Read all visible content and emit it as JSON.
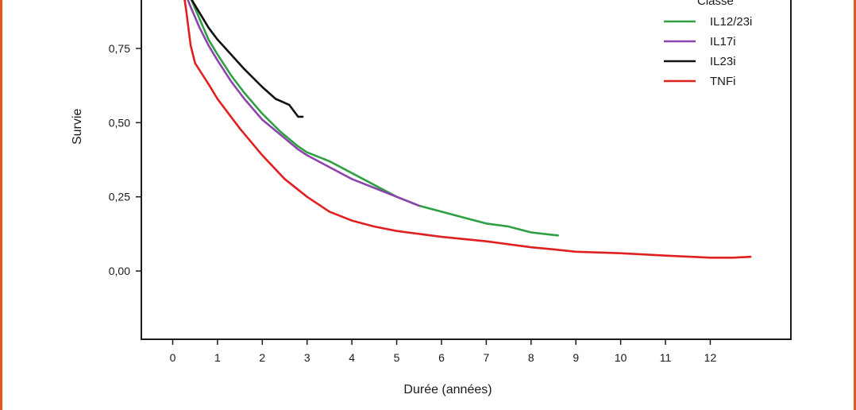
{
  "chart_data": {
    "type": "line",
    "title": "",
    "xlabel": "Durée (années)",
    "ylabel": "Survie",
    "xlim": [
      -0.7,
      13.8
    ],
    "ylim": [
      -0.23,
      0.94
    ],
    "x_ticks": [
      {
        "value": 0,
        "label": "0"
      },
      {
        "value": 1,
        "label": "1"
      },
      {
        "value": 2,
        "label": "2"
      },
      {
        "value": 3,
        "label": "3"
      },
      {
        "value": 4,
        "label": "4"
      },
      {
        "value": 5,
        "label": "5"
      },
      {
        "value": 6,
        "label": "6"
      },
      {
        "value": 7,
        "label": "7"
      },
      {
        "value": 8,
        "label": "8"
      },
      {
        "value": 9,
        "label": "9"
      },
      {
        "value": 10,
        "label": "10"
      },
      {
        "value": 11,
        "label": "11"
      },
      {
        "value": 12,
        "label": "12"
      }
    ],
    "y_ticks": [
      {
        "value": 0.75,
        "label": "0,75"
      },
      {
        "value": 0.5,
        "label": "0,50"
      },
      {
        "value": 0.25,
        "label": "0,25"
      },
      {
        "value": 0.0,
        "label": "0,00"
      }
    ],
    "legend_title": "Classe",
    "legend_position": "top-right",
    "grid": false,
    "series": [
      {
        "name": "IL12/23i",
        "color": "#2ea043",
        "points": [
          [
            0.22,
            0.96
          ],
          [
            0.4,
            0.92
          ],
          [
            0.6,
            0.85
          ],
          [
            0.8,
            0.78
          ],
          [
            1.0,
            0.73
          ],
          [
            1.3,
            0.66
          ],
          [
            1.6,
            0.6
          ],
          [
            2.0,
            0.53
          ],
          [
            2.4,
            0.47
          ],
          [
            2.8,
            0.42
          ],
          [
            3.0,
            0.4
          ],
          [
            3.5,
            0.37
          ],
          [
            4.0,
            0.33
          ],
          [
            4.5,
            0.29
          ],
          [
            5.0,
            0.25
          ],
          [
            5.5,
            0.22
          ],
          [
            6.0,
            0.2
          ],
          [
            6.5,
            0.18
          ],
          [
            7.0,
            0.16
          ],
          [
            7.5,
            0.15
          ],
          [
            8.0,
            0.13
          ],
          [
            8.3,
            0.125
          ],
          [
            8.6,
            0.12
          ]
        ]
      },
      {
        "name": "IL17i",
        "color": "#8e44ad",
        "points": [
          [
            0.22,
            0.96
          ],
          [
            0.4,
            0.89
          ],
          [
            0.6,
            0.82
          ],
          [
            0.8,
            0.76
          ],
          [
            1.0,
            0.71
          ],
          [
            1.3,
            0.64
          ],
          [
            1.6,
            0.58
          ],
          [
            2.0,
            0.51
          ],
          [
            2.4,
            0.46
          ],
          [
            2.8,
            0.41
          ],
          [
            3.0,
            0.39
          ],
          [
            3.5,
            0.35
          ],
          [
            4.0,
            0.31
          ],
          [
            4.5,
            0.28
          ],
          [
            5.0,
            0.25
          ],
          [
            5.5,
            0.22
          ]
        ]
      },
      {
        "name": "IL23i",
        "color": "#111111",
        "points": [
          [
            0.22,
            0.96
          ],
          [
            0.4,
            0.92
          ],
          [
            0.6,
            0.87
          ],
          [
            0.8,
            0.82
          ],
          [
            1.0,
            0.78
          ],
          [
            1.3,
            0.73
          ],
          [
            1.6,
            0.68
          ],
          [
            2.0,
            0.62
          ],
          [
            2.3,
            0.58
          ],
          [
            2.6,
            0.56
          ],
          [
            2.7,
            0.54
          ],
          [
            2.8,
            0.52
          ],
          [
            2.9,
            0.52
          ]
        ]
      },
      {
        "name": "TNFi",
        "color": "#e02020",
        "points": [
          [
            0.22,
            0.96
          ],
          [
            0.3,
            0.88
          ],
          [
            0.4,
            0.76
          ],
          [
            0.5,
            0.7
          ],
          [
            0.8,
            0.63
          ],
          [
            1.0,
            0.58
          ],
          [
            1.5,
            0.48
          ],
          [
            2.0,
            0.39
          ],
          [
            2.5,
            0.31
          ],
          [
            3.0,
            0.25
          ],
          [
            3.5,
            0.2
          ],
          [
            4.0,
            0.17
          ],
          [
            4.5,
            0.15
          ],
          [
            5.0,
            0.135
          ],
          [
            6.0,
            0.115
          ],
          [
            7.0,
            0.1
          ],
          [
            8.0,
            0.08
          ],
          [
            8.5,
            0.073
          ],
          [
            9.0,
            0.065
          ],
          [
            10.0,
            0.06
          ],
          [
            11.0,
            0.052
          ],
          [
            12.0,
            0.045
          ],
          [
            12.5,
            0.045
          ],
          [
            12.9,
            0.048
          ]
        ]
      }
    ]
  }
}
